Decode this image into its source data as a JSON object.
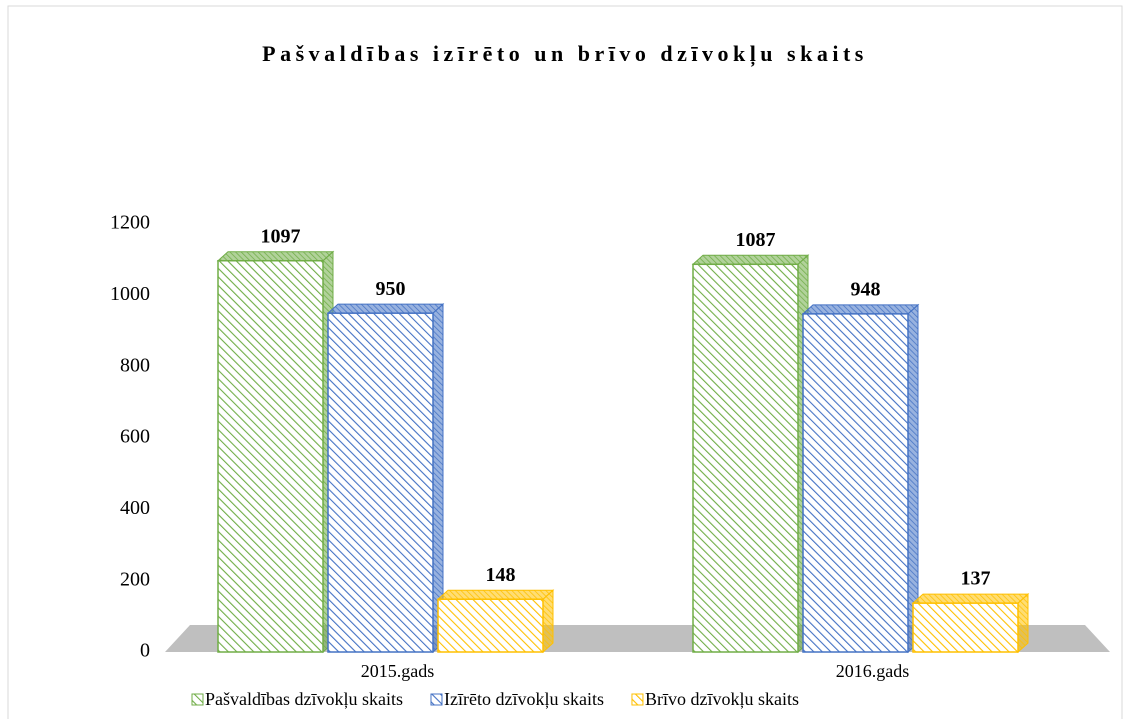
{
  "chart_data": {
    "type": "bar3d",
    "title": "Pašvaldības izīrēto un brīvo dzīvokļu skaits",
    "categories": [
      "2015.gads",
      "2016.gads"
    ],
    "series": [
      {
        "name": "Pašvaldības dzīvokļu skaits",
        "color": "#70ad47",
        "values": [
          1097,
          1087
        ]
      },
      {
        "name": "Izīrēto dzīvokļu skaits",
        "color": "#4472c4",
        "values": [
          950,
          948
        ]
      },
      {
        "name": "Brīvo dzīvokļu skaits",
        "color": "#ffc000",
        "values": [
          148,
          137
        ]
      }
    ],
    "ylim": [
      0,
      1200
    ],
    "yticks": [
      0,
      200,
      400,
      600,
      800,
      1000,
      1200
    ],
    "grid": false
  }
}
